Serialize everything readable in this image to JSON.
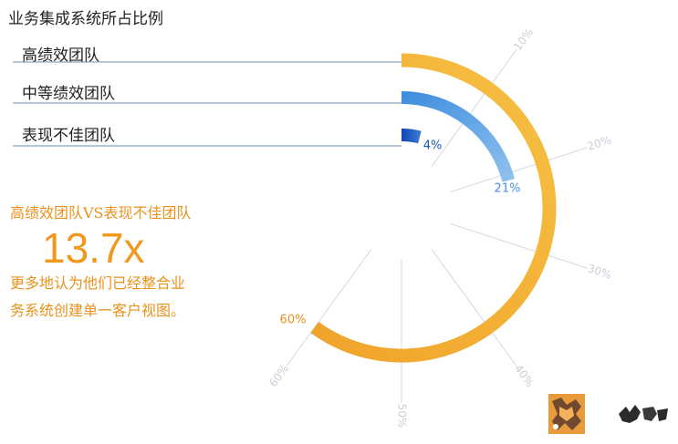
{
  "chart_data": {
    "type": "radial-bar",
    "title": "业务集成系统所占比例",
    "axis_ticks": [
      "10%",
      "20%",
      "30%",
      "40%",
      "50%",
      "60%"
    ],
    "tick_max": 60,
    "series": [
      {
        "name": "高绩效团队",
        "value": 60,
        "value_label": "60%",
        "color": "#f0a32a",
        "gradient_to": "#f6c043"
      },
      {
        "name": "中等绩效团队",
        "value": 21,
        "value_label": "21%",
        "color": "#3f8ede",
        "gradient_to": "#8fc0ee"
      },
      {
        "name": "表现不佳团队",
        "value": 4,
        "value_label": "4%",
        "color": "#0e47b1",
        "gradient_to": "#3b78d6"
      }
    ]
  },
  "callout": {
    "heading": "高绩效团队VS表现不佳团队",
    "value": "13.7x",
    "lines": [
      "更多地认为他们已经整合业",
      "务系统创建单一客户视图。"
    ]
  },
  "logo": {
    "icon": "logo-icon",
    "color": "#e99a3a"
  }
}
